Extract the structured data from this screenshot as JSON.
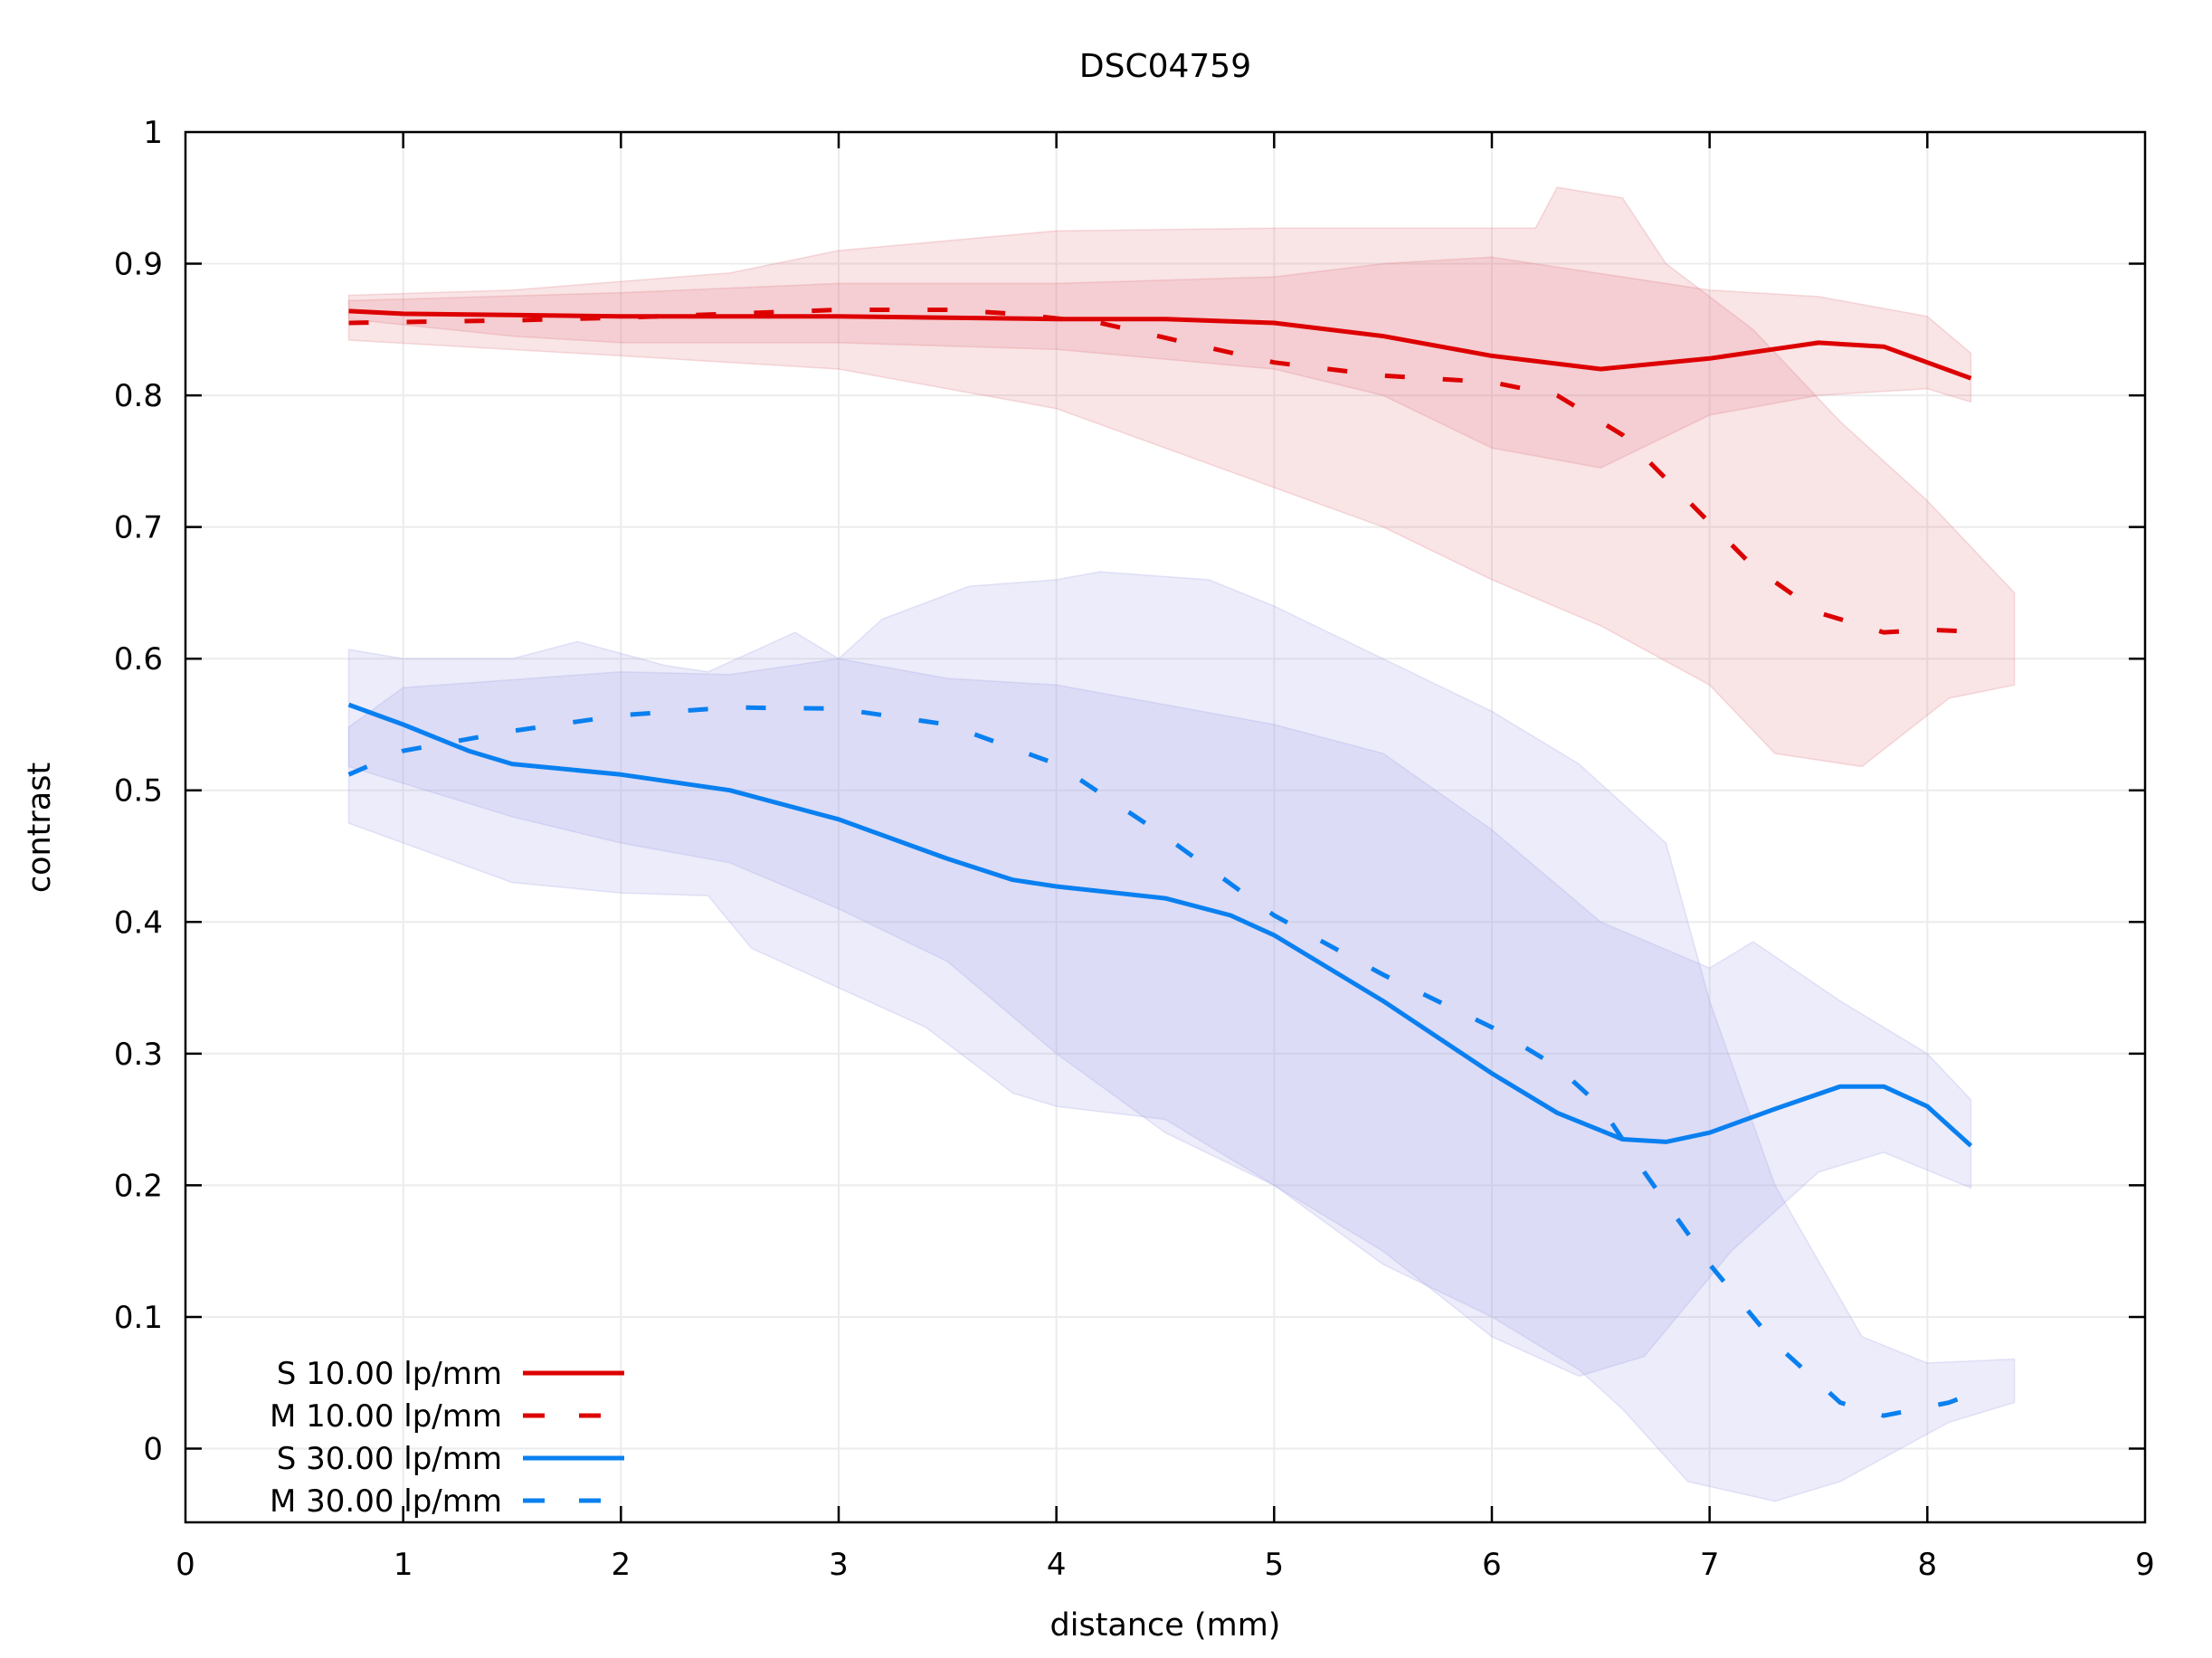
{
  "chart_data": {
    "type": "line",
    "title": "DSC04759",
    "xlabel": "distance (mm)",
    "ylabel": "contrast",
    "xlim": [
      0,
      9
    ],
    "ylim": [
      -0.056,
      1
    ],
    "xticks": [
      0,
      1,
      2,
      3,
      4,
      5,
      6,
      7,
      8,
      9
    ],
    "yticks": [
      0,
      0.1,
      0.2,
      0.3,
      0.4,
      0.5,
      0.6,
      0.7,
      0.8,
      0.9,
      1
    ],
    "xtick_labels": [
      "0",
      "1",
      "2",
      "3",
      "4",
      "5",
      "6",
      "7",
      "8",
      "9"
    ],
    "ytick_labels": [
      "0",
      "0.1",
      "0.2",
      "0.3",
      "0.4",
      "0.5",
      "0.6",
      "0.7",
      "0.8",
      "0.9",
      "1"
    ],
    "grid": true,
    "legend_position": "bottom-left",
    "series": [
      {
        "name": "S 10.00 lp/mm",
        "color": "#dd0000",
        "dash": "solid",
        "x": [
          0.75,
          1,
          1.5,
          2,
          3,
          4,
          4.5,
          5,
          5.5,
          6,
          6.5,
          7,
          7.5,
          7.8,
          8.2
        ],
        "y": [
          0.864,
          0.862,
          0.861,
          0.86,
          0.86,
          0.858,
          0.858,
          0.855,
          0.845,
          0.83,
          0.82,
          0.828,
          0.84,
          0.837,
          0.813
        ],
        "band_color": "#e07a80",
        "band_upper": {
          "x": [
            0.75,
            1,
            2,
            3,
            4,
            5,
            5.5,
            6,
            7,
            7.5,
            8,
            8.2
          ],
          "y": [
            0.872,
            0.873,
            0.878,
            0.885,
            0.885,
            0.89,
            0.9,
            0.905,
            0.88,
            0.875,
            0.86,
            0.832
          ]
        },
        "band_lower": {
          "x": [
            0.75,
            1.5,
            2,
            3,
            4,
            5,
            5.5,
            6,
            6.5,
            7,
            7.5,
            8,
            8.2
          ],
          "y": [
            0.858,
            0.845,
            0.84,
            0.84,
            0.835,
            0.82,
            0.8,
            0.76,
            0.745,
            0.785,
            0.8,
            0.805,
            0.795
          ]
        }
      },
      {
        "name": "M 10.00 lp/mm",
        "color": "#dd0000",
        "dash": "dashed",
        "x": [
          0.75,
          1.5,
          2,
          2.5,
          3,
          3.5,
          3.8,
          4.2,
          4.6,
          5,
          5.5,
          6,
          6.3,
          6.6,
          6.9,
          7.2,
          7.5,
          7.8,
          8,
          8.3
        ],
        "y": [
          0.855,
          0.857,
          0.859,
          0.862,
          0.865,
          0.865,
          0.862,
          0.855,
          0.84,
          0.825,
          0.815,
          0.81,
          0.8,
          0.77,
          0.72,
          0.67,
          0.635,
          0.62,
          0.622,
          0.62
        ],
        "band_color": "#e07a80",
        "band_upper": {
          "x": [
            0.75,
            1.5,
            2.5,
            3,
            4,
            5,
            6.2,
            6.3,
            6.6,
            6.8,
            7.2,
            7.6,
            8,
            8.4
          ],
          "y": [
            0.876,
            0.88,
            0.893,
            0.91,
            0.925,
            0.927,
            0.927,
            0.958,
            0.95,
            0.9,
            0.85,
            0.78,
            0.72,
            0.65
          ]
        },
        "band_lower": {
          "x": [
            0.75,
            2,
            3,
            4,
            5,
            5.5,
            6,
            6.5,
            7,
            7.3,
            7.7,
            8.1,
            8.4
          ],
          "y": [
            0.842,
            0.83,
            0.82,
            0.79,
            0.73,
            0.7,
            0.66,
            0.625,
            0.58,
            0.528,
            0.518,
            0.57,
            0.58
          ]
        }
      },
      {
        "name": "S 30.00 lp/mm",
        "color": "#0a80f0",
        "dash": "solid",
        "x": [
          0.75,
          1,
          1.3,
          1.5,
          2,
          2.5,
          3,
          3.5,
          3.8,
          4,
          4.5,
          4.8,
          5,
          5.5,
          6,
          6.3,
          6.6,
          6.8,
          7,
          7.3,
          7.6,
          7.8,
          8,
          8.2
        ],
        "y": [
          0.565,
          0.55,
          0.53,
          0.52,
          0.512,
          0.5,
          0.478,
          0.448,
          0.432,
          0.427,
          0.418,
          0.405,
          0.39,
          0.34,
          0.285,
          0.255,
          0.235,
          0.233,
          0.24,
          0.258,
          0.275,
          0.275,
          0.26,
          0.23
        ],
        "band_color": "#a0a0e6",
        "band_upper": {
          "x": [
            0.75,
            1,
            2,
            2.5,
            3,
            3.5,
            4,
            4.5,
            5,
            5.5,
            6,
            6.5,
            7,
            7.2,
            7.6,
            8,
            8.2
          ],
          "y": [
            0.548,
            0.578,
            0.59,
            0.588,
            0.6,
            0.585,
            0.58,
            0.565,
            0.55,
            0.528,
            0.47,
            0.4,
            0.365,
            0.385,
            0.34,
            0.3,
            0.265
          ]
        },
        "band_lower": {
          "x": [
            0.75,
            1.5,
            2,
            2.5,
            3,
            3.5,
            4,
            4.5,
            5,
            5.5,
            6,
            6.4,
            6.7,
            7.1,
            7.5,
            7.8,
            8.2
          ],
          "y": [
            0.518,
            0.48,
            0.46,
            0.445,
            0.41,
            0.37,
            0.3,
            0.24,
            0.2,
            0.15,
            0.085,
            0.055,
            0.07,
            0.15,
            0.21,
            0.225,
            0.198
          ]
        }
      },
      {
        "name": "M 30.00 lp/mm",
        "color": "#0a80f0",
        "dash": "dashed",
        "x": [
          0.75,
          1,
          1.5,
          2,
          2.5,
          3,
          3.5,
          4,
          4.5,
          5,
          5.5,
          6,
          6.3,
          6.5,
          6.7,
          7,
          7.3,
          7.6,
          7.8,
          8.1,
          8.3
        ],
        "y": [
          0.512,
          0.53,
          0.545,
          0.557,
          0.563,
          0.562,
          0.55,
          0.52,
          0.465,
          0.405,
          0.36,
          0.32,
          0.29,
          0.26,
          0.21,
          0.14,
          0.08,
          0.035,
          0.025,
          0.035,
          0.048
        ],
        "band_color": "#a0a0e6",
        "band_upper": {
          "x": [
            0.75,
            1,
            1.5,
            1.8,
            2.2,
            2.4,
            2.8,
            3,
            3.2,
            3.6,
            4,
            4.2,
            4.7,
            5,
            5.5,
            6,
            6.4,
            6.8,
            7,
            7.3,
            7.7,
            8,
            8.4
          ],
          "y": [
            0.607,
            0.6,
            0.6,
            0.613,
            0.595,
            0.59,
            0.62,
            0.6,
            0.63,
            0.655,
            0.66,
            0.666,
            0.66,
            0.64,
            0.6,
            0.56,
            0.52,
            0.46,
            0.34,
            0.2,
            0.085,
            0.065,
            0.068
          ]
        },
        "band_lower": {
          "x": [
            0.75,
            1.5,
            2,
            2.4,
            2.6,
            3,
            3.4,
            3.8,
            4,
            4.5,
            5,
            5.5,
            6,
            6.4,
            6.6,
            6.9,
            7.3,
            7.6,
            8.1,
            8.4
          ],
          "y": [
            0.475,
            0.43,
            0.422,
            0.42,
            0.38,
            0.35,
            0.32,
            0.27,
            0.26,
            0.25,
            0.2,
            0.14,
            0.1,
            0.06,
            0.03,
            -0.025,
            -0.04,
            -0.025,
            0.02,
            0.035
          ]
        }
      }
    ],
    "legend": [
      {
        "label": "S 10.00 lp/mm",
        "color": "#dd0000",
        "dash": "solid"
      },
      {
        "label": "M 10.00 lp/mm",
        "color": "#dd0000",
        "dash": "dashed"
      },
      {
        "label": "S 30.00 lp/mm",
        "color": "#0a80f0",
        "dash": "solid"
      },
      {
        "label": "M 30.00 lp/mm",
        "color": "#0a80f0",
        "dash": "dashed"
      }
    ]
  }
}
